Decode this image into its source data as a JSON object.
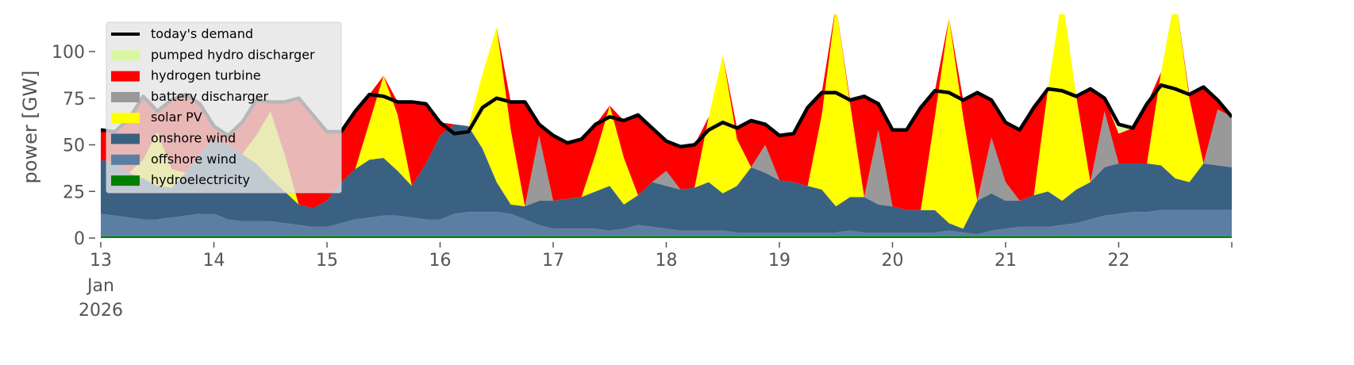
{
  "chart_data": {
    "type": "area",
    "title": "",
    "xlabel": "",
    "ylabel": "power [GW]",
    "ylim": [
      0,
      120
    ],
    "x_start": "2026-01-13T00:00",
    "x_step_hours": 3,
    "x_ticks": [
      {
        "day": 0,
        "label": "13",
        "sub": [
          "Jan",
          "2026"
        ]
      },
      {
        "day": 1,
        "label": "14"
      },
      {
        "day": 2,
        "label": "15"
      },
      {
        "day": 3,
        "label": "16"
      },
      {
        "day": 4,
        "label": "17"
      },
      {
        "day": 5,
        "label": "18"
      },
      {
        "day": 6,
        "label": "19"
      },
      {
        "day": 7,
        "label": "20"
      },
      {
        "day": 8,
        "label": "21"
      },
      {
        "day": 9,
        "label": "22"
      },
      {
        "day": 10,
        "label": ""
      }
    ],
    "y_ticks": [
      0,
      25,
      50,
      75,
      100
    ],
    "legend_position": "upper-left",
    "stack_order": [
      "hydroelectricity",
      "offshore wind",
      "onshore wind",
      "solar PV",
      "battery discharger",
      "hydrogen turbine",
      "pumped hydro discharger"
    ],
    "series": [
      {
        "name": "hydroelectricity",
        "color": "#008000",
        "values": [
          1,
          1,
          1,
          1,
          1,
          1,
          1,
          1,
          1,
          1,
          1,
          1,
          1,
          1,
          1,
          1,
          1,
          1,
          1,
          1,
          1,
          1,
          1,
          1,
          1,
          1,
          1,
          1,
          1,
          1,
          1,
          1,
          1,
          1,
          1,
          1,
          1,
          1,
          1,
          1,
          1,
          1,
          1,
          1,
          1,
          1,
          1,
          1,
          1,
          1,
          1,
          1,
          1,
          1,
          1,
          1,
          1,
          1,
          1,
          1,
          1,
          1,
          1,
          1,
          1,
          1,
          1,
          1,
          1,
          1,
          1,
          1,
          1,
          1,
          1,
          1,
          1,
          1,
          1,
          1,
          1
        ]
      },
      {
        "name": "offshore wind",
        "color": "#5b7fa3",
        "values": [
          12,
          11,
          10,
          9,
          9,
          10,
          11,
          12,
          12,
          9,
          8,
          8,
          8,
          7,
          6,
          5,
          5,
          7,
          9,
          10,
          11,
          11,
          10,
          9,
          9,
          12,
          13,
          13,
          13,
          12,
          9,
          6,
          4,
          4,
          4,
          4,
          3,
          4,
          6,
          5,
          4,
          3,
          3,
          3,
          3,
          2,
          2,
          2,
          2,
          2,
          2,
          2,
          2,
          3,
          2,
          2,
          2,
          2,
          2,
          2,
          3,
          2,
          1,
          3,
          4,
          5,
          5,
          5,
          6,
          7,
          9,
          11,
          12,
          13,
          13,
          14,
          14,
          14,
          14,
          14,
          14
        ]
      },
      {
        "name": "onshore wind",
        "color": "#3b6182",
        "values": [
          29,
          28,
          24,
          22,
          18,
          16,
          23,
          32,
          40,
          40,
          36,
          31,
          23,
          17,
          11,
          10,
          14,
          22,
          27,
          31,
          31,
          24,
          17,
          30,
          45,
          48,
          46,
          34,
          16,
          5,
          7,
          13,
          15,
          16,
          17,
          20,
          24,
          13,
          16,
          24,
          23,
          22,
          23,
          26,
          20,
          25,
          35,
          32,
          28,
          27,
          25,
          23,
          14,
          18,
          19,
          15,
          14,
          12,
          12,
          12,
          4,
          2,
          18,
          20,
          15,
          14,
          17,
          19,
          13,
          18,
          20,
          26,
          27,
          26,
          26,
          24,
          17,
          15,
          25,
          24,
          23
        ]
      },
      {
        "name": "solar PV",
        "color": "#ffff00",
        "values": [
          0,
          0,
          0,
          10,
          29,
          10,
          0,
          0,
          0,
          0,
          0,
          15,
          36,
          20,
          0,
          0,
          0,
          0,
          0,
          20,
          44,
          30,
          0,
          0,
          0,
          0,
          0,
          40,
          83,
          40,
          0,
          0,
          0,
          0,
          0,
          20,
          43,
          25,
          0,
          0,
          0,
          0,
          0,
          35,
          74,
          25,
          0,
          0,
          0,
          0,
          0,
          40,
          108,
          50,
          0,
          0,
          0,
          0,
          0,
          50,
          110,
          60,
          0,
          0,
          0,
          0,
          0,
          55,
          110,
          50,
          0,
          0,
          0,
          0,
          0,
          50,
          98,
          45,
          0,
          0,
          0
        ]
      },
      {
        "name": "battery discharger",
        "color": "#999999",
        "values": [
          0,
          0,
          0,
          0,
          0,
          0,
          0,
          0,
          0,
          0,
          0,
          0,
          0,
          0,
          0,
          0,
          0,
          0,
          0,
          0,
          0,
          0,
          0,
          0,
          0,
          0,
          0,
          0,
          0,
          0,
          0,
          35,
          0,
          0,
          0,
          0,
          0,
          0,
          0,
          0,
          8,
          0,
          0,
          0,
          0,
          0,
          0,
          15,
          0,
          0,
          0,
          0,
          0,
          0,
          0,
          40,
          0,
          0,
          0,
          0,
          0,
          0,
          0,
          30,
          10,
          0,
          0,
          0,
          0,
          0,
          0,
          30,
          0,
          0,
          0,
          0,
          0,
          0,
          0,
          30,
          27
        ]
      },
      {
        "name": "hydrogen turbine",
        "color": "#ff0000",
        "values": [
          16,
          17,
          29,
          34,
          11,
          37,
          42,
          27,
          7,
          5,
          17,
          19,
          5,
          28,
          57,
          50,
          37,
          27,
          31,
          15,
          0,
          7,
          45,
          32,
          7,
          0,
          0,
          0,
          0,
          15,
          56,
          6,
          35,
          30,
          31,
          16,
          0,
          20,
          43,
          29,
          16,
          23,
          23,
          0,
          0,
          6,
          25,
          11,
          24,
          26,
          42,
          12,
          0,
          2,
          54,
          14,
          41,
          43,
          55,
          14,
          0,
          9,
          58,
          20,
          32,
          38,
          47,
          0,
          0,
          0,
          50,
          7,
          16,
          19,
          32,
          0,
          0,
          2,
          41,
          5,
          0
        ]
      },
      {
        "name": "pumped hydro discharger",
        "color": "#d9f7a1",
        "values": [
          0,
          0,
          0,
          0,
          0,
          0,
          0,
          0,
          0,
          0,
          0,
          0,
          0,
          0,
          0,
          0,
          0,
          0,
          0,
          0,
          0,
          0,
          0,
          0,
          0,
          0,
          0,
          0,
          0,
          0,
          0,
          0,
          0,
          0,
          0,
          0,
          0,
          0,
          0,
          0,
          0,
          0,
          0,
          0,
          0,
          0,
          0,
          0,
          0,
          0,
          0,
          0,
          0,
          0,
          0,
          0,
          0,
          0,
          0,
          0,
          0,
          0,
          0,
          0,
          0,
          0,
          0,
          0,
          0,
          0,
          0,
          0,
          5,
          0,
          0,
          0,
          0,
          0,
          0,
          0,
          0
        ]
      }
    ],
    "line": {
      "name": "today's demand",
      "color": "#000000",
      "values": [
        58,
        57,
        64,
        76,
        68,
        74,
        77,
        72,
        60,
        55,
        62,
        74,
        73,
        73,
        75,
        66,
        57,
        57,
        68,
        77,
        76,
        73,
        73,
        72,
        62,
        56,
        57,
        70,
        75,
        73,
        73,
        61,
        55,
        51,
        53,
        61,
        65,
        63,
        66,
        59,
        52,
        49,
        50,
        58,
        62,
        59,
        63,
        61,
        55,
        56,
        70,
        78,
        78,
        74,
        76,
        72,
        58,
        58,
        70,
        79,
        78,
        74,
        78,
        74,
        62,
        58,
        70,
        80,
        79,
        76,
        80,
        75,
        61,
        59,
        72,
        82,
        80,
        77,
        81,
        74,
        65
      ]
    },
    "legend": [
      "today's demand",
      "pumped hydro discharger",
      "hydrogen turbine",
      "battery discharger",
      "solar PV",
      "onshore wind",
      "offshore wind",
      "hydroelectricity"
    ]
  }
}
